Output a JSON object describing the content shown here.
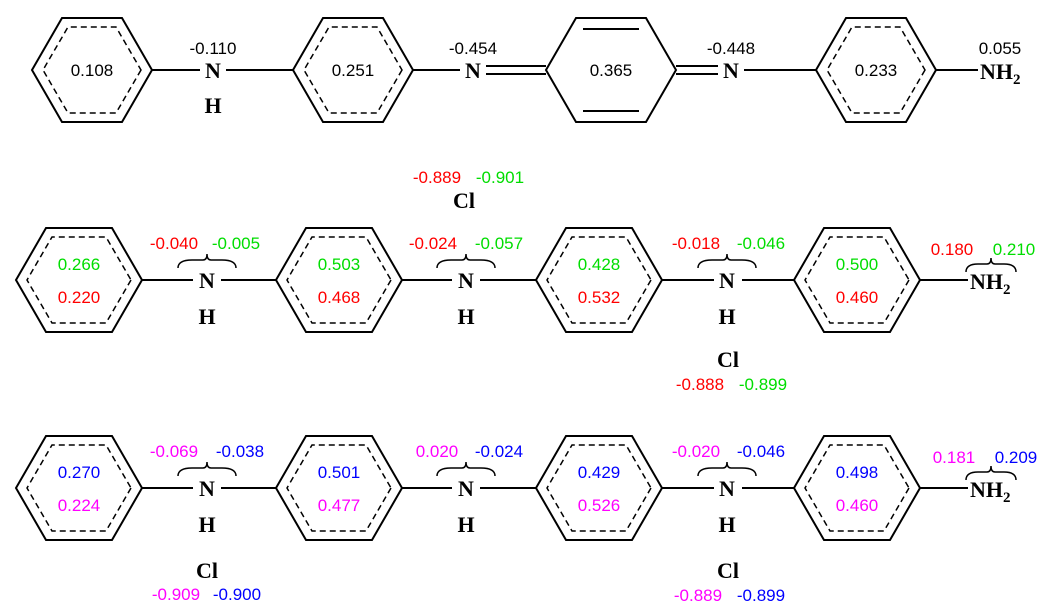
{
  "colors": {
    "black": "#000000",
    "red": "#ff0000",
    "green": "#00dd00",
    "magenta": "#ff00ff",
    "blue": "#0000ff"
  },
  "atoms": {
    "n": "N",
    "h": "H",
    "nh2_main": "NH",
    "nh2_sub": "2",
    "cl": "Cl"
  },
  "structure1": {
    "rings": [
      "0.108",
      "0.251",
      "0.365",
      "0.233"
    ],
    "nitrogens": [
      "-0.110",
      "-0.454",
      "-0.448",
      "0.055"
    ]
  },
  "structure2": {
    "cl_charge_a": "-0.889",
    "cl_charge_b": "-0.901",
    "cl2_charge_a": "-0.888",
    "cl2_charge_b": "-0.899",
    "ring_top": [
      "0.266",
      "0.503",
      "0.428",
      "0.500"
    ],
    "ring_bottom": [
      "0.220",
      "0.468",
      "0.532",
      "0.460"
    ],
    "n_a": [
      "-0.040",
      "-0.024",
      "-0.018",
      "0.180"
    ],
    "n_b": [
      "-0.005",
      "-0.057",
      "-0.046",
      "0.210"
    ]
  },
  "structure3": {
    "cl1_charge_a": "-0.909",
    "cl1_charge_b": "-0.900",
    "cl2_charge_a": "-0.889",
    "cl2_charge_b": "-0.899",
    "ring_top": [
      "0.270",
      "0.501",
      "0.429",
      "0.498"
    ],
    "ring_bottom": [
      "0.224",
      "0.477",
      "0.526",
      "0.460"
    ],
    "n_a": [
      "-0.069",
      "0.020",
      "-0.020",
      "0.181"
    ],
    "n_b": [
      "-0.038",
      "-0.024",
      "-0.046",
      "0.209"
    ]
  }
}
